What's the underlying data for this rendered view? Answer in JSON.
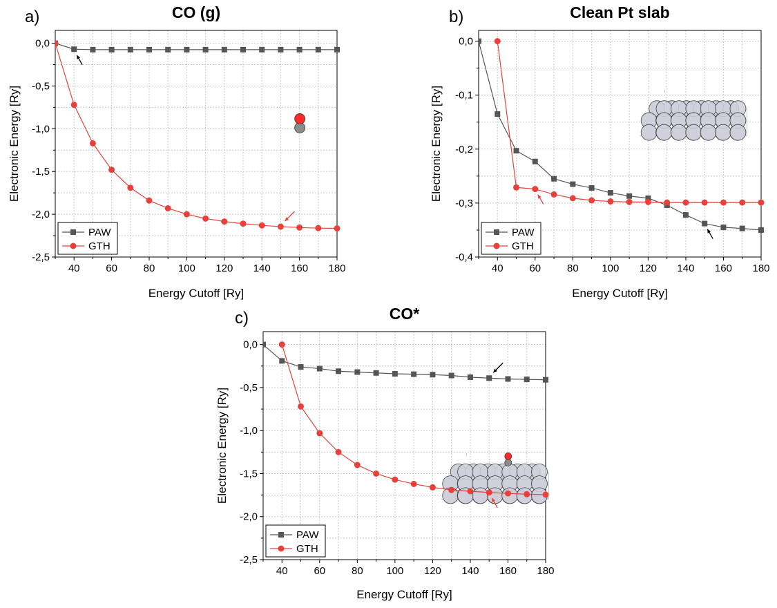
{
  "chart_data": [
    {
      "type": "line",
      "panel_label": "a)",
      "title": "CO (g)",
      "xlabel": "Energy Cutoff [Ry]",
      "ylabel": "Electronic Energy [Ry]",
      "xlim": [
        30,
        180
      ],
      "ylim": [
        -2.5,
        0.15
      ],
      "xticks": [
        40,
        60,
        80,
        100,
        120,
        140,
        160,
        180
      ],
      "yticks": [
        0.0,
        -0.5,
        -1.0,
        -1.5,
        -2.0,
        -2.5
      ],
      "ytick_labels": [
        "0,0",
        "-0,5",
        "-1,0",
        "-1,5",
        "-2,0",
        "-2,5"
      ],
      "grid": true,
      "legend": "bottom-left",
      "series": [
        {
          "name": "PAW",
          "color": "#555555",
          "marker": "square",
          "x": [
            30,
            40,
            50,
            60,
            70,
            80,
            90,
            100,
            110,
            120,
            130,
            140,
            150,
            160,
            170,
            180
          ],
          "y": [
            0,
            -0.07,
            -0.075,
            -0.075,
            -0.075,
            -0.075,
            -0.075,
            -0.075,
            -0.075,
            -0.075,
            -0.075,
            -0.075,
            -0.075,
            -0.075,
            -0.075,
            -0.075
          ]
        },
        {
          "name": "GTH",
          "color": "#e8413c",
          "marker": "circle",
          "x": [
            30,
            40,
            50,
            60,
            70,
            80,
            90,
            100,
            110,
            120,
            130,
            140,
            150,
            160,
            170,
            180
          ],
          "y": [
            0,
            -0.72,
            -1.17,
            -1.48,
            -1.69,
            -1.84,
            -1.93,
            -2.0,
            -2.05,
            -2.085,
            -2.11,
            -2.13,
            -2.145,
            -2.155,
            -2.162,
            -2.165
          ]
        }
      ],
      "arrows": [
        {
          "series": "PAW",
          "color": "#000000",
          "x": 40,
          "y": -0.075
        },
        {
          "series": "GTH",
          "color": "#e8413c",
          "x": 150,
          "y": -2.145
        }
      ],
      "inset": "co-molecule-icon"
    },
    {
      "type": "line",
      "panel_label": "b)",
      "title": "Clean Pt slab",
      "xlabel": "Energy Cutoff [Ry]",
      "ylabel": "Electronic Energy [Ry]",
      "xlim": [
        30,
        180
      ],
      "ylim": [
        -0.4,
        0.02
      ],
      "xticks": [
        40,
        60,
        80,
        100,
        120,
        140,
        160,
        180
      ],
      "yticks": [
        0.0,
        -0.1,
        -0.2,
        -0.3,
        -0.4
      ],
      "ytick_labels": [
        "0,0",
        "-0,1",
        "-0,2",
        "-0,3",
        "-0,4"
      ],
      "grid": true,
      "legend": "bottom-left",
      "series": [
        {
          "name": "PAW",
          "color": "#555555",
          "marker": "square",
          "x": [
            30,
            40,
            50,
            60,
            70,
            80,
            90,
            100,
            110,
            120,
            130,
            140,
            150,
            160,
            170,
            180
          ],
          "y": [
            0,
            -0.135,
            -0.203,
            -0.223,
            -0.255,
            -0.265,
            -0.272,
            -0.281,
            -0.287,
            -0.291,
            -0.304,
            -0.322,
            -0.338,
            -0.345,
            -0.347,
            -0.35
          ]
        },
        {
          "name": "GTH",
          "color": "#e8413c",
          "marker": "circle",
          "x": [
            40,
            50,
            60,
            70,
            80,
            90,
            100,
            110,
            120,
            130,
            140,
            150,
            160,
            170,
            180
          ],
          "y": [
            0,
            -0.271,
            -0.274,
            -0.284,
            -0.291,
            -0.295,
            -0.297,
            -0.298,
            -0.298,
            -0.299,
            -0.299,
            -0.299,
            -0.299,
            -0.299,
            -0.299
          ]
        }
      ],
      "arrows": [
        {
          "series": "GTH",
          "color": "#e8413c",
          "x": 60,
          "y": -0.274
        },
        {
          "series": "PAW",
          "color": "#000000",
          "x": 150,
          "y": -0.338
        }
      ],
      "inset": "pt-slab-icon"
    },
    {
      "type": "line",
      "panel_label": "c)",
      "title": "CO*",
      "xlabel": "Energy Cutoff [Ry]",
      "ylabel": "Electronic Energy [Ry]",
      "xlim": [
        30,
        180
      ],
      "ylim": [
        -2.5,
        0.15
      ],
      "xticks": [
        40,
        60,
        80,
        100,
        120,
        140,
        160,
        180
      ],
      "yticks": [
        0.0,
        -0.5,
        -1.0,
        -1.5,
        -2.0,
        -2.5
      ],
      "ytick_labels": [
        "0,0",
        "-0,5",
        "-1,0",
        "-1,5",
        "-2,0",
        "-2,5"
      ],
      "grid": true,
      "legend": "bottom-left",
      "series": [
        {
          "name": "PAW",
          "color": "#555555",
          "marker": "square",
          "x": [
            30,
            40,
            50,
            60,
            70,
            80,
            90,
            100,
            110,
            120,
            130,
            140,
            150,
            160,
            170,
            180
          ],
          "y": [
            0,
            -0.19,
            -0.26,
            -0.28,
            -0.31,
            -0.32,
            -0.33,
            -0.34,
            -0.345,
            -0.35,
            -0.36,
            -0.38,
            -0.39,
            -0.4,
            -0.405,
            -0.41
          ]
        },
        {
          "name": "GTH",
          "color": "#e8413c",
          "marker": "circle",
          "x": [
            40,
            50,
            60,
            70,
            80,
            90,
            100,
            110,
            120,
            130,
            140,
            150,
            160,
            170,
            180
          ],
          "y": [
            0,
            -0.72,
            -1.03,
            -1.25,
            -1.4,
            -1.5,
            -1.57,
            -1.62,
            -1.66,
            -1.69,
            -1.705,
            -1.72,
            -1.73,
            -1.74,
            -1.745
          ]
        }
      ],
      "arrows": [
        {
          "series": "PAW",
          "color": "#000000",
          "x": 150,
          "y": -0.39
        },
        {
          "series": "GTH",
          "color": "#e8413c",
          "x": 150,
          "y": -1.72
        }
      ],
      "inset": "co-on-pt-slab-icon"
    }
  ],
  "colors": {
    "paw": "#555555",
    "gth": "#e8413c",
    "oxygen": "#ff2a2a",
    "carbon": "#8c8c8c",
    "platinum": "#d0d0dc"
  }
}
